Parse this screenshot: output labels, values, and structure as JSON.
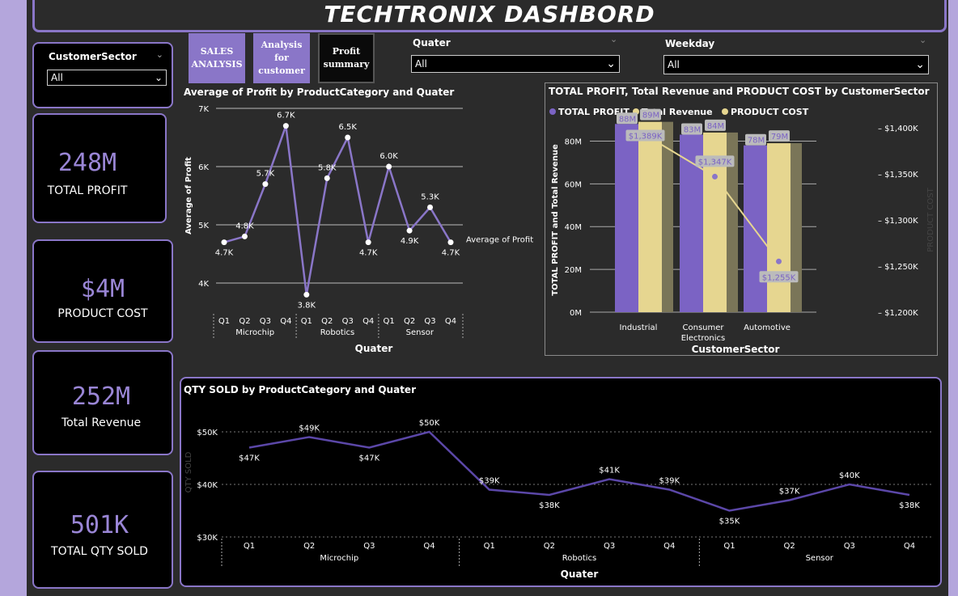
{
  "title": "TECHTRONIX DASHBORD",
  "slicers": {
    "sector": {
      "label": "CustomerSector",
      "value": "All"
    },
    "quater": {
      "label": "Quater",
      "value": "All"
    },
    "weekday": {
      "label": "Weekday",
      "value": "All"
    }
  },
  "nav": {
    "b1": "SALES ANALYSIS",
    "b2": "Analysis for customer",
    "b3": "Profit summary"
  },
  "kpis": [
    {
      "value": "248M",
      "label": "TOTAL PROFIT"
    },
    {
      "value": "$4M",
      "label": "PRODUCT COST"
    },
    {
      "value": "252M",
      "label": "Total Revenue"
    },
    {
      "value": "501K",
      "label": "TOTAL QTY SOLD"
    }
  ],
  "colors": {
    "accent": "#8a76c8",
    "profit": "#7b63c4",
    "revenue": "#e6d690",
    "cost": "#e6d690"
  },
  "chart_data": [
    {
      "type": "line",
      "title": "Average of Profit by ProductCategory and Quater",
      "xlabel": "Quater",
      "ylabel": "Average of Profit",
      "series_label": "Average of Profit",
      "groups": [
        "Microchip",
        "Robotics",
        "Sensor"
      ],
      "quarters": [
        "Q1",
        "Q2",
        "Q3",
        "Q4"
      ],
      "values": [
        4.7,
        4.8,
        5.7,
        6.7,
        3.8,
        5.8,
        6.5,
        4.7,
        6.0,
        4.9,
        5.3,
        4.7
      ],
      "labels": [
        "4.7K",
        "4.8K",
        "5.7K",
        "6.7K",
        "3.8K",
        "5.8K",
        "6.5K",
        "4.7K",
        "6.0K",
        "4.9K",
        "5.3K",
        "4.7K"
      ],
      "yticks": [
        "4K",
        "5K",
        "6K",
        "7K"
      ],
      "ylim": [
        4,
        7
      ]
    },
    {
      "type": "bar",
      "title": "TOTAL PROFIT, Total Revenue and PRODUCT COST by CustomerSector",
      "legend": [
        "TOTAL PROFIT",
        "Total Revenue",
        "PRODUCT COST"
      ],
      "categories": [
        "Industrial",
        "Consumer Electronics",
        "Automotive"
      ],
      "xlabel": "CustomerSector",
      "ylabel": "TOTAL PROFIT and Total Revenue",
      "y2label": "PRODUCT COST",
      "series": [
        {
          "name": "TOTAL PROFIT",
          "values": [
            88,
            83,
            78
          ],
          "labels": [
            "88M",
            "83M",
            "78M"
          ]
        },
        {
          "name": "Total Revenue",
          "values": [
            89,
            84,
            79
          ],
          "labels": [
            "89M",
            "84M",
            "79M"
          ]
        },
        {
          "name": "PRODUCT COST",
          "values": [
            1389,
            1347,
            1255
          ],
          "labels": [
            "$1,389K",
            "$1,347K",
            "$1,255K"
          ]
        }
      ],
      "yticks": [
        "0M",
        "20M",
        "40M",
        "60M",
        "80M"
      ],
      "y2ticks": [
        "$1,200K",
        "$1,250K",
        "$1,300K",
        "$1,350K",
        "$1,400K"
      ],
      "ylim": [
        0,
        90
      ],
      "y2lim": [
        1200,
        1400
      ]
    },
    {
      "type": "line",
      "title": "QTY SOLD by ProductCategory and Quater",
      "xlabel": "Quater",
      "ylabel": "QTY SOLD",
      "groups": [
        "Microchip",
        "Robotics",
        "Sensor"
      ],
      "quarters": [
        "Q1",
        "Q2",
        "Q3",
        "Q4"
      ],
      "values": [
        47,
        49,
        47,
        50,
        39,
        38,
        41,
        39,
        35,
        37,
        40,
        38
      ],
      "labels": [
        "$47K",
        "$49K",
        "$47K",
        "$50K",
        "$39K",
        "$38K",
        "$41K",
        "$39K",
        "$35K",
        "$37K",
        "$40K",
        "$38K"
      ],
      "yticks": [
        "$30K",
        "$40K",
        "$50K"
      ],
      "ylim": [
        30,
        50
      ]
    }
  ]
}
